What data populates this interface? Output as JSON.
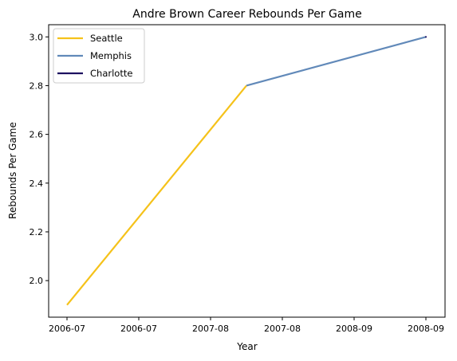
{
  "chart_data": {
    "type": "line",
    "title": "Andre Brown  Career Rebounds Per Game",
    "xlabel": "Year",
    "ylabel": "Rebounds Per Game",
    "ylim": [
      1.85,
      3.05
    ],
    "yticks": [
      "2.0",
      "2.2",
      "2.4",
      "2.6",
      "2.8",
      "3.0"
    ],
    "xticks": [
      "2006-07",
      "2006-07",
      "2007-08",
      "2007-08",
      "2008-09",
      "2008-09"
    ],
    "grid": false,
    "legend_position": "top-left",
    "series": [
      {
        "name": "Seattle",
        "color": "#f5c21a",
        "x": [
          "2006-07",
          "2007-08"
        ],
        "y": [
          1.9,
          2.8
        ]
      },
      {
        "name": "Memphis",
        "color": "#6189b9",
        "x": [
          "2007-08",
          "2008-09"
        ],
        "y": [
          2.8,
          3.0
        ]
      },
      {
        "name": "Charlotte",
        "color": "#1d1160",
        "x": [
          "2008-09"
        ],
        "y": [
          3.0
        ]
      }
    ]
  }
}
